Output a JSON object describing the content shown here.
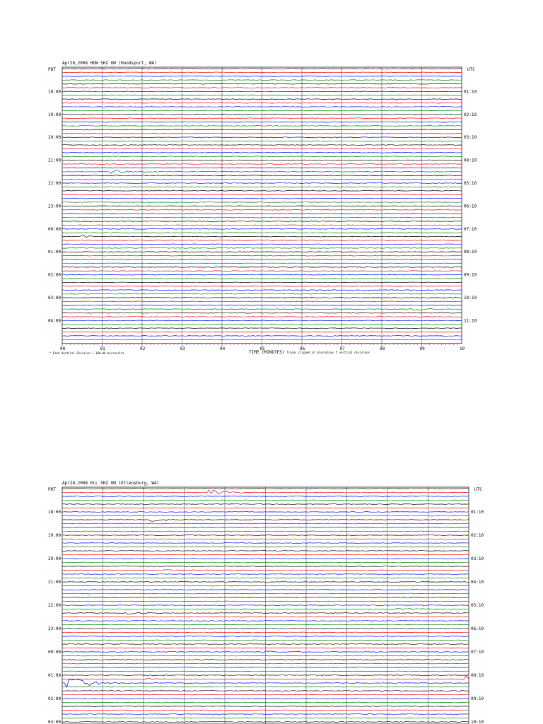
{
  "chart_data": [
    {
      "type": "line",
      "title": "Apr28,2008    HDW SHZ UW    (Hoodsport, WA)",
      "left_zone": "PDT",
      "right_zone": "UTC",
      "left_labels": [
        "18:00",
        "19:00",
        "20:00",
        "21:00",
        "22:00",
        "23:00",
        "00:00",
        "01:00",
        "02:00",
        "03:00",
        "04:00"
      ],
      "right_labels": [
        "01:10",
        "02:10",
        "03:10",
        "04:10",
        "05:10",
        "06:10",
        "07:10",
        "08:10",
        "09:10",
        "10:10",
        "11:10"
      ],
      "x_ticks": [
        "00",
        "01",
        "02",
        "03",
        "04",
        "05",
        "06",
        "07",
        "08",
        "09",
        "10"
      ],
      "xlabel": "TIME (MINUTES)",
      "scale_note": "Each Vertical Division = 100.00 microvolts",
      "clip_note": "Traces clipped at plus/minus 5 vertical divisions",
      "trace_colors": [
        "#000000",
        "#ff0000",
        "#0000ff",
        "#008000"
      ],
      "events": [
        {
          "hour_row": 4,
          "trace": 3,
          "minute": 1.3,
          "amp": 3
        },
        {
          "hour_row": 7,
          "trace": 2,
          "minute": 0.6,
          "amp": 2
        },
        {
          "hour_row": 11,
          "trace": 1,
          "minute": 2.8,
          "amp": 1
        },
        {
          "hour_row": 10,
          "trace": 3,
          "minute": 8.8,
          "amp": 2
        }
      ]
    },
    {
      "type": "line",
      "title": "Apr28,2008    ELL SHZ UW    (Ellensburg, WA)",
      "left_zone": "PDT",
      "right_zone": "UTC",
      "left_labels": [
        "18:00",
        "19:00",
        "20:00",
        "21:00",
        "22:00",
        "23:00",
        "00:00",
        "01:00",
        "02:00",
        "03:00"
      ],
      "right_labels": [
        "01:10",
        "02:10",
        "03:10",
        "04:10",
        "05:10",
        "06:10",
        "07:10",
        "08:10",
        "09:10",
        "10:10"
      ],
      "trace_colors": [
        "#000000",
        "#ff0000",
        "#0000ff",
        "#008000"
      ],
      "events": [
        {
          "hour_row": 0,
          "trace": 1,
          "minute": 3.6,
          "amp": 4
        },
        {
          "hour_row": 1,
          "trace": 2,
          "minute": 2.2,
          "amp": 3
        },
        {
          "hour_row": 3,
          "trace": 3,
          "minute": 2.5,
          "amp": 2
        },
        {
          "hour_row": 5,
          "trace": 1,
          "minute": 8.2,
          "amp": 2
        },
        {
          "hour_row": 5,
          "trace": 2,
          "minute": 1.5,
          "amp": 2
        },
        {
          "hour_row": 8,
          "trace": 2,
          "minute": 0.2,
          "amp": 9
        },
        {
          "hour_row": 8,
          "trace": 1,
          "minute": 9.9,
          "amp": 6
        },
        {
          "hour_row": 8,
          "trace": 1,
          "minute": 2.0,
          "amp": 2
        },
        {
          "hour_row": 7,
          "trace": 0,
          "minute": 5.0,
          "amp": 2
        }
      ]
    }
  ]
}
